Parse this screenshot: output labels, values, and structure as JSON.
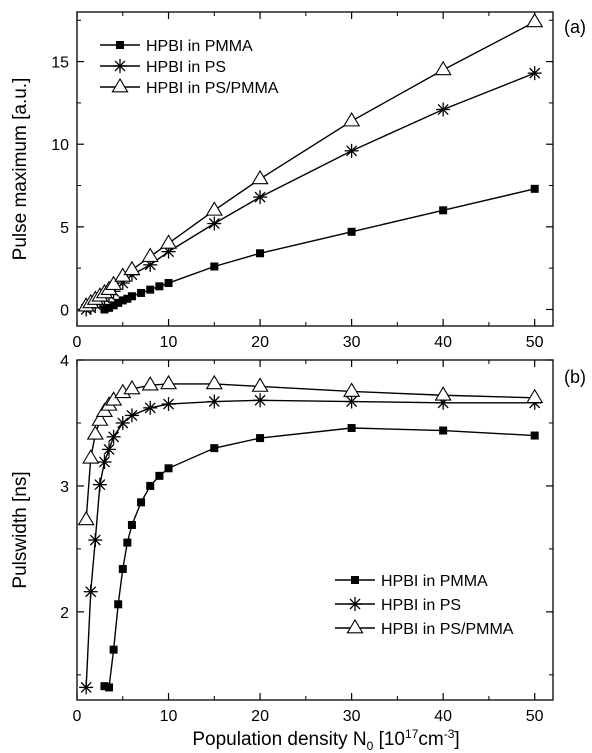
{
  "chart_data": [
    {
      "panel_label": "(a)",
      "type": "line",
      "ylabel": "Pulse maximum [a.u.]",
      "xlim": [
        0,
        52
      ],
      "ylim": [
        -1,
        18
      ],
      "xticks": [
        "0",
        "10",
        "20",
        "30",
        "40",
        "50"
      ],
      "yticks": [
        "0",
        "5",
        "10",
        "15"
      ],
      "xtick_values": [
        0,
        10,
        20,
        30,
        40,
        50
      ],
      "ytick_values": [
        0,
        5,
        10,
        15
      ],
      "legend_position": "top-left",
      "series": [
        {
          "name": "HPBI in PMMA",
          "marker": "square",
          "x": [
            3,
            3.5,
            4,
            4.5,
            5,
            5.5,
            6,
            7,
            8,
            9,
            10,
            15,
            20,
            30,
            40,
            50
          ],
          "y": [
            0.0,
            0.1,
            0.25,
            0.4,
            0.55,
            0.65,
            0.8,
            1.0,
            1.2,
            1.4,
            1.6,
            2.6,
            3.4,
            4.7,
            6.0,
            7.3
          ]
        },
        {
          "name": "HPBI in PS",
          "marker": "asterisk",
          "x": [
            1,
            1.5,
            2,
            2.5,
            3,
            3.5,
            4,
            5,
            6,
            8,
            10,
            15,
            20,
            30,
            40,
            50
          ],
          "y": [
            0.0,
            0.1,
            0.3,
            0.5,
            0.7,
            0.9,
            1.1,
            1.6,
            2.1,
            2.7,
            3.5,
            5.2,
            6.8,
            9.6,
            12.1,
            14.3
          ]
        },
        {
          "name": "HPBI in PS/PMMA",
          "marker": "triangle",
          "x": [
            1,
            1.5,
            2,
            2.5,
            3,
            3.5,
            4,
            5,
            6,
            8,
            10,
            15,
            20,
            30,
            40,
            50
          ],
          "y": [
            0.2,
            0.4,
            0.6,
            0.8,
            1.0,
            1.2,
            1.5,
            2.0,
            2.4,
            3.2,
            4.0,
            6.0,
            7.9,
            11.4,
            14.5,
            17.4
          ]
        }
      ]
    },
    {
      "panel_label": "(b)",
      "type": "line",
      "ylabel": "Pulswidth [ns]",
      "xlabel_main": "Population density N",
      "xlabel_sub": "0",
      "xlabel_unit_open": " [10",
      "xlabel_exp": "17",
      "xlabel_unit_mid": "cm",
      "xlabel_exp2": "-3",
      "xlabel_close": "]",
      "xlim": [
        0,
        52
      ],
      "ylim": [
        1.3,
        4.0
      ],
      "xticks": [
        "0",
        "10",
        "20",
        "30",
        "40",
        "50"
      ],
      "yticks": [
        "2",
        "3",
        "4"
      ],
      "xtick_values": [
        0,
        10,
        20,
        30,
        40,
        50
      ],
      "ytick_values": [
        2,
        3,
        4
      ],
      "legend_position": "bottom-right",
      "series": [
        {
          "name": "HPBI in PMMA",
          "marker": "square",
          "x": [
            3,
            3.5,
            4,
            4.5,
            5,
            5.5,
            6,
            7,
            8,
            9,
            10,
            15,
            20,
            30,
            40,
            50
          ],
          "y": [
            1.41,
            1.4,
            1.7,
            2.06,
            2.34,
            2.55,
            2.69,
            2.87,
            3.0,
            3.08,
            3.14,
            3.3,
            3.38,
            3.46,
            3.44,
            3.4
          ]
        },
        {
          "name": "HPBI in PS",
          "marker": "asterisk",
          "x": [
            1,
            1.5,
            2,
            2.5,
            3,
            3.5,
            4,
            5,
            6,
            8,
            10,
            15,
            20,
            30,
            40,
            50
          ],
          "y": [
            1.4,
            2.16,
            2.57,
            3.01,
            3.19,
            3.29,
            3.39,
            3.5,
            3.56,
            3.62,
            3.65,
            3.67,
            3.68,
            3.67,
            3.66,
            3.66
          ]
        },
        {
          "name": "HPBI in PS/PMMA",
          "marker": "triangle",
          "x": [
            1,
            1.5,
            2,
            2.5,
            3,
            3.5,
            4,
            5,
            6,
            8,
            10,
            15,
            20,
            30,
            40,
            50
          ],
          "y": [
            2.73,
            3.22,
            3.41,
            3.52,
            3.59,
            3.64,
            3.68,
            3.74,
            3.77,
            3.8,
            3.81,
            3.81,
            3.79,
            3.75,
            3.72,
            3.7
          ]
        }
      ]
    }
  ]
}
